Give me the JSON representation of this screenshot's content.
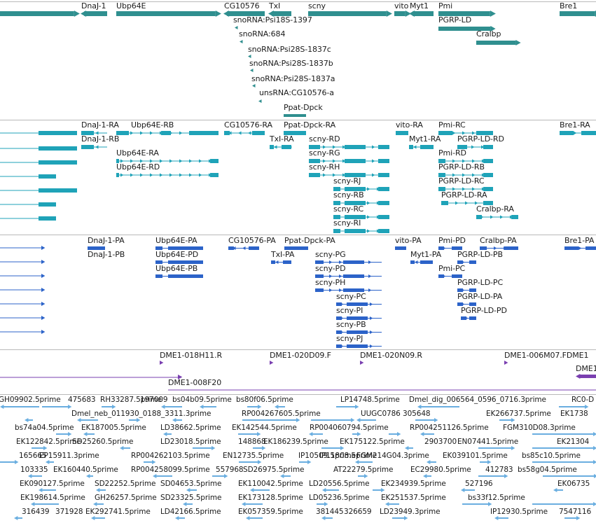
{
  "colors": {
    "gene": "#2f8f8f",
    "mrna": "#1fa3b8",
    "protein": "#2c63c9",
    "probe": "#7a3fb0",
    "est": "#6aaee0",
    "separator": "#b9b9b9"
  },
  "tracks": {
    "genes": {
      "labels": [
        "DnaJ-1",
        "Ubp64E",
        "CG10576",
        "TxI",
        "scny",
        "vito",
        "Myt1",
        "Pmi",
        "PGRP-LD",
        "Cralbp",
        "Bre1",
        "snoRNA:Psi18S-1397",
        "snoRNA:684",
        "snoRNA:Psi28S-1837c",
        "snoRNA:Psi28S-1837b",
        "snoRNA:Psi28S-1837a",
        "unsRNA:CG10576-a",
        "Ppat-Dpck"
      ]
    },
    "transcripts": {
      "labels": [
        "DnaJ-1-RA",
        "DnaJ-1-RB",
        "Ubp64E-RB",
        "Ubp64E-RA",
        "Ubp64E-RD",
        "CG10576-RA",
        "Ppat-Dpck-RA",
        "TxI-RA",
        "scny-RD",
        "scny-RG",
        "scny-RH",
        "scny-RJ",
        "scny-RB",
        "scny-RC",
        "scny-RI",
        "vito-RA",
        "Myt1-RA",
        "Pmi-RC",
        "PGRP-LD-RD",
        "Pmi-RD",
        "PGRP-LD-RB",
        "PGRP-LD-RC",
        "PGRP-LD-RA",
        "Cralbp-RA",
        "Bre1-RA"
      ]
    },
    "proteins": {
      "labels": [
        "DnaJ-1-PA",
        "DnaJ-1-PB",
        "Ubp64E-PA",
        "Ubp64E-PD",
        "Ubp64E-PB",
        "CG10576-PA",
        "Ppat-Dpck-PA",
        "TxI-PA",
        "scny-PG",
        "scny-PD",
        "scny-PH",
        "scny-PC",
        "scny-PI",
        "scny-PB",
        "scny-PJ",
        "vito-PA",
        "Myt1-PA",
        "Pmi-PD",
        "Pmi-PC",
        "Cralbp-PA",
        "PGRP-LD-PB",
        "PGRP-LD-PC",
        "PGRP-LD-PA",
        "PGRP-LD-PD",
        "Bre1-PA"
      ]
    },
    "probes": {
      "labels": [
        "DME1-018H11.R",
        "DME1-020D09.F",
        "DME1-020N09.R",
        "DME1-006M07.FDME1",
        "DME1",
        "DME1-008F20"
      ]
    },
    "ests": {
      "labels": [
        "GH09902.5prime",
        "475683",
        "RH33287.5prime",
        "197009",
        "bs04b09.5prime",
        "bs80f06.5prime",
        "LP14748.5prime",
        "Dmel_dig_006564_0596_0716.3prime",
        "RC0-D",
        "Dmel_neb_011930_0188_3311.3prime",
        "RP004267605.5prime",
        "UUGC0786",
        "305648",
        "EK266737.5prime",
        "EK1738",
        "bs74a04.5prime",
        "EK187005.5prime",
        "LD38662.5prime",
        "EK142544.5prime",
        "RP004060794.5prime",
        "RP004251126.5prime",
        "FGM310D08.3prime",
        "EK122842.5prime",
        "SD25260.5prime",
        "LD23018.5prime",
        "148868",
        "EK186239.5prime",
        "EK175122.5prime",
        "2903700",
        "EN07441.5prime",
        "EK21304",
        "165665",
        "EP15911.3prime",
        "RP004262103.5prime",
        "EN12735.5prime",
        "IP10509.5prime",
        "IP11808.5prime",
        "FGM214G04.3prime",
        "EK039101.5prime",
        "bs85c10.5prime",
        "103335",
        "EK160440.5prime",
        "RP004258099.5prime",
        "557968",
        "SD26975.5prime",
        "AT22279.5prime",
        "EC29980.5prime",
        "412783",
        "bs58g04.5prime",
        "EK090127.5prime",
        "SD22252.5prime",
        "SD04653.5prime",
        "EK110042.5prime",
        "LD20556.5prime",
        "EK234939.5prime",
        "527196",
        "EK06735",
        "EK198614.5prime",
        "GH26257.5prime",
        "SD23325.5prime",
        "EK173128.5prime",
        "LD05236.5prime",
        "EK251537.5prime",
        "bs33f12.5prime",
        "316439",
        "371928",
        "EK292741.5prime",
        "LD42166.5prime",
        "EK057359.5prime",
        "381445",
        "326659",
        "LD23949.3prime",
        "IP12930.5prime",
        "7547116"
      ]
    }
  }
}
